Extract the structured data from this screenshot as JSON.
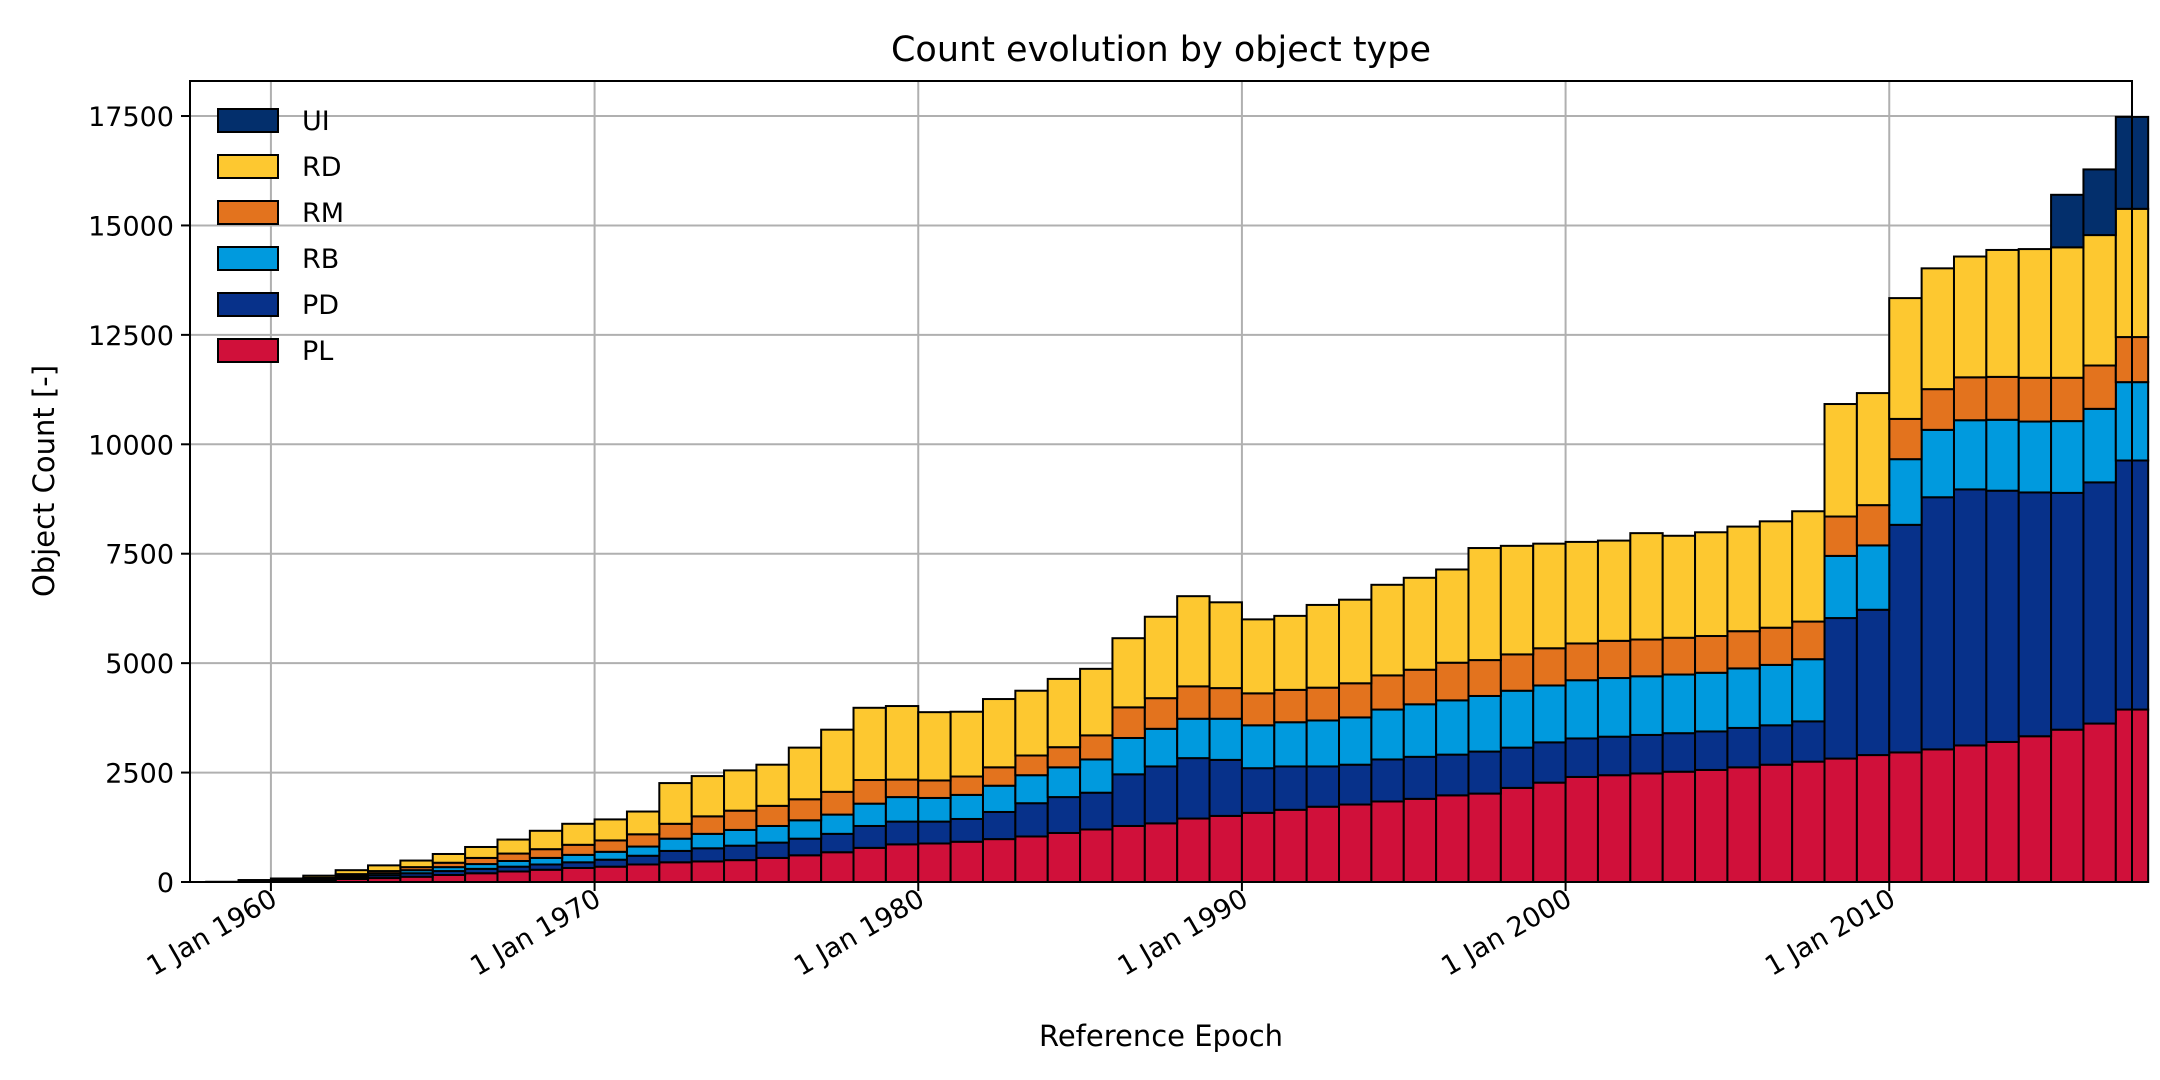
{
  "chart_data": {
    "type": "bar",
    "stacked": true,
    "title": "Count evolution by object type",
    "xlabel": "Reference Epoch",
    "ylabel": "Object Count [-]",
    "x_unit": "year (1 Jan)",
    "xlim": [
      "1957-07-01",
      "2017-07-01"
    ],
    "ylim": [
      0,
      18300
    ],
    "grid": true,
    "legend_position": "top-left",
    "x_tick_labels": [
      "1 Jan 1960",
      "1 Jan 1970",
      "1 Jan 1980",
      "1 Jan 1990",
      "1 Jan 2000",
      "1 Jan 2010"
    ],
    "x_tick_years": [
      1960,
      1970,
      1980,
      1990,
      2000,
      2010
    ],
    "y_tick_labels": [
      "0",
      "2500",
      "5000",
      "7500",
      "10000",
      "12500",
      "15000",
      "17500"
    ],
    "y_ticks": [
      0,
      2500,
      5000,
      7500,
      10000,
      12500,
      15000,
      17500
    ],
    "x": [
      1958,
      1959,
      1960,
      1961,
      1962,
      1963,
      1964,
      1965,
      1966,
      1967,
      1968,
      1969,
      1970,
      1971,
      1972,
      1973,
      1974,
      1975,
      1976,
      1977,
      1978,
      1979,
      1980,
      1981,
      1982,
      1983,
      1984,
      1985,
      1986,
      1987,
      1988,
      1989,
      1990,
      1991,
      1992,
      1993,
      1994,
      1995,
      1996,
      1997,
      1998,
      1999,
      2000,
      2001,
      2002,
      2003,
      2004,
      2005,
      2006,
      2007,
      2008,
      2009,
      2010,
      2011,
      2012,
      2013,
      2014,
      2015,
      2016,
      2017
    ],
    "series": [
      {
        "name": "PL",
        "color": "#d0103a",
        "values": [
          5,
          10,
          20,
          40,
          70,
          90,
          120,
          160,
          200,
          240,
          280,
          320,
          350,
          400,
          450,
          470,
          500,
          550,
          610,
          680,
          780,
          860,
          880,
          920,
          980,
          1040,
          1120,
          1200,
          1280,
          1340,
          1450,
          1510,
          1580,
          1650,
          1720,
          1770,
          1840,
          1900,
          1980,
          2020,
          2150,
          2270,
          2400,
          2440,
          2480,
          2520,
          2560,
          2620,
          2680,
          2750,
          2820,
          2900,
          2960,
          3030,
          3120,
          3200,
          3330,
          3480,
          3620,
          3940
        ]
      },
      {
        "name": "PD",
        "color": "#07318a",
        "values": [
          0,
          5,
          10,
          20,
          40,
          60,
          80,
          90,
          100,
          110,
          120,
          130,
          160,
          200,
          260,
          300,
          330,
          350,
          380,
          420,
          500,
          520,
          500,
          520,
          620,
          760,
          820,
          840,
          1180,
          1300,
          1380,
          1280,
          1020,
          990,
          920,
          910,
          960,
          960,
          930,
          960,
          920,
          920,
          880,
          880,
          880,
          880,
          880,
          900,
          900,
          920,
          3210,
          3320,
          5200,
          5760,
          5850,
          5740,
          5570,
          5410,
          5510,
          5690
        ]
      },
      {
        "name": "RB",
        "color": "#009ade",
        "values": [
          0,
          5,
          10,
          15,
          30,
          50,
          70,
          90,
          110,
          130,
          150,
          170,
          180,
          210,
          280,
          330,
          360,
          380,
          420,
          440,
          510,
          560,
          540,
          550,
          600,
          640,
          680,
          760,
          830,
          860,
          900,
          940,
          980,
          1010,
          1050,
          1080,
          1140,
          1200,
          1240,
          1270,
          1300,
          1300,
          1330,
          1340,
          1340,
          1340,
          1340,
          1360,
          1380,
          1420,
          1420,
          1470,
          1500,
          1540,
          1580,
          1620,
          1620,
          1640,
          1680,
          1790
        ]
      },
      {
        "name": "RM",
        "color": "#e3731e",
        "values": [
          0,
          5,
          10,
          20,
          40,
          50,
          70,
          100,
          140,
          170,
          200,
          230,
          260,
          280,
          340,
          400,
          440,
          460,
          480,
          520,
          540,
          400,
          400,
          420,
          420,
          450,
          460,
          550,
          700,
          700,
          740,
          700,
          730,
          740,
          750,
          780,
          780,
          790,
          860,
          820,
          830,
          850,
          840,
          850,
          840,
          840,
          840,
          850,
          850,
          860,
          900,
          920,
          920,
          930,
          980,
          980,
          1000,
          990,
          990,
          1030
        ]
      },
      {
        "name": "RD",
        "color": "#fdc830",
        "values": [
          0,
          20,
          30,
          50,
          90,
          130,
          150,
          200,
          250,
          320,
          420,
          480,
          480,
          520,
          930,
          920,
          920,
          940,
          1180,
          1420,
          1650,
          1680,
          1560,
          1480,
          1560,
          1480,
          1560,
          1520,
          1580,
          1860,
          2060,
          1960,
          1690,
          1690,
          1890,
          1910,
          2070,
          2100,
          2130,
          2560,
          2480,
          2390,
          2320,
          2290,
          2430,
          2330,
          2370,
          2390,
          2430,
          2520,
          2570,
          2560,
          2760,
          2760,
          2760,
          2900,
          2940,
          2980,
          2980,
          2930
        ]
      },
      {
        "name": "UI",
        "color": "#032f6c",
        "values": [
          0,
          0,
          0,
          0,
          0,
          0,
          0,
          0,
          0,
          0,
          0,
          0,
          0,
          0,
          0,
          0,
          0,
          0,
          0,
          0,
          0,
          0,
          0,
          0,
          0,
          0,
          0,
          0,
          0,
          0,
          0,
          0,
          0,
          0,
          0,
          0,
          0,
          0,
          0,
          0,
          0,
          0,
          0,
          0,
          0,
          0,
          0,
          0,
          0,
          0,
          0,
          0,
          0,
          0,
          0,
          0,
          0,
          1200,
          1500,
          2100
        ]
      }
    ]
  }
}
